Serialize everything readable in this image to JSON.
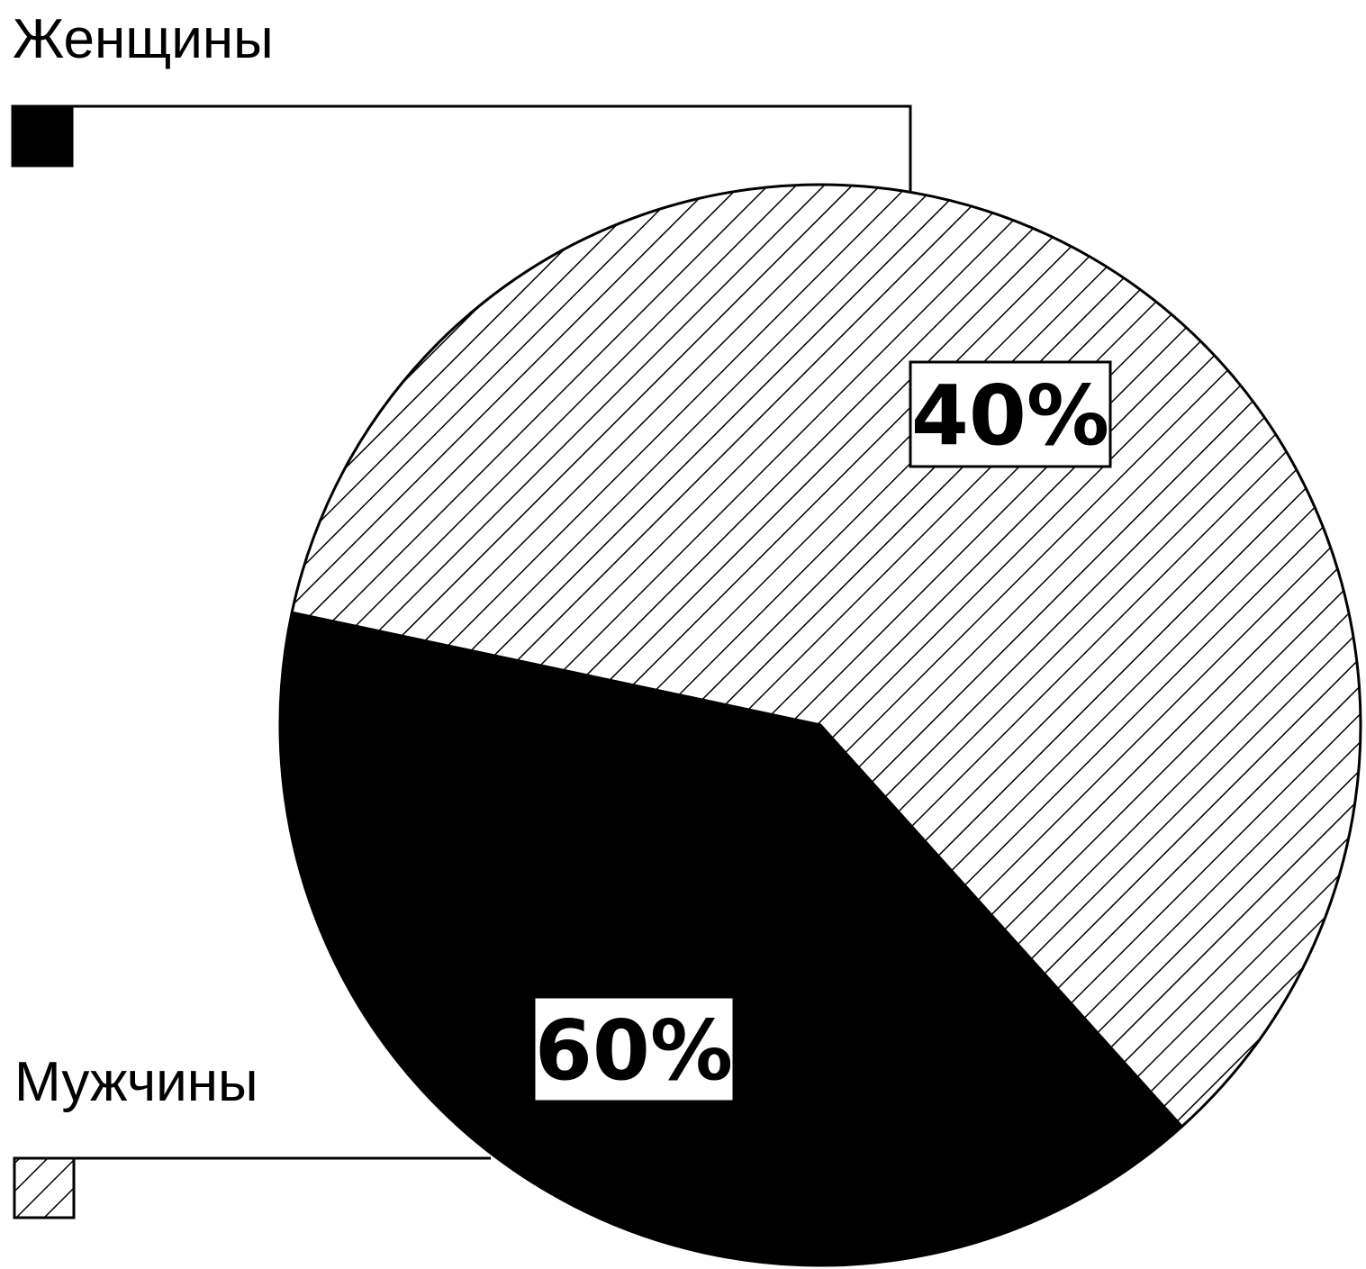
{
  "chart_data": {
    "type": "pie",
    "slices": [
      {
        "name": "Женщины",
        "value": 40,
        "label": "40%",
        "fill": "#000000",
        "pattern": "solid"
      },
      {
        "name": "Мужчины",
        "value": 60,
        "label": "60%",
        "fill": "#ffffff",
        "pattern": "diagonal-hatch"
      }
    ],
    "legend": {
      "placement": "left",
      "items": [
        {
          "label": "Женщины",
          "pattern": "solid"
        },
        {
          "label": "Мужчины",
          "pattern": "diagonal-hatch"
        }
      ]
    },
    "colors": {
      "ink": "#000000",
      "paper": "#ffffff"
    }
  }
}
